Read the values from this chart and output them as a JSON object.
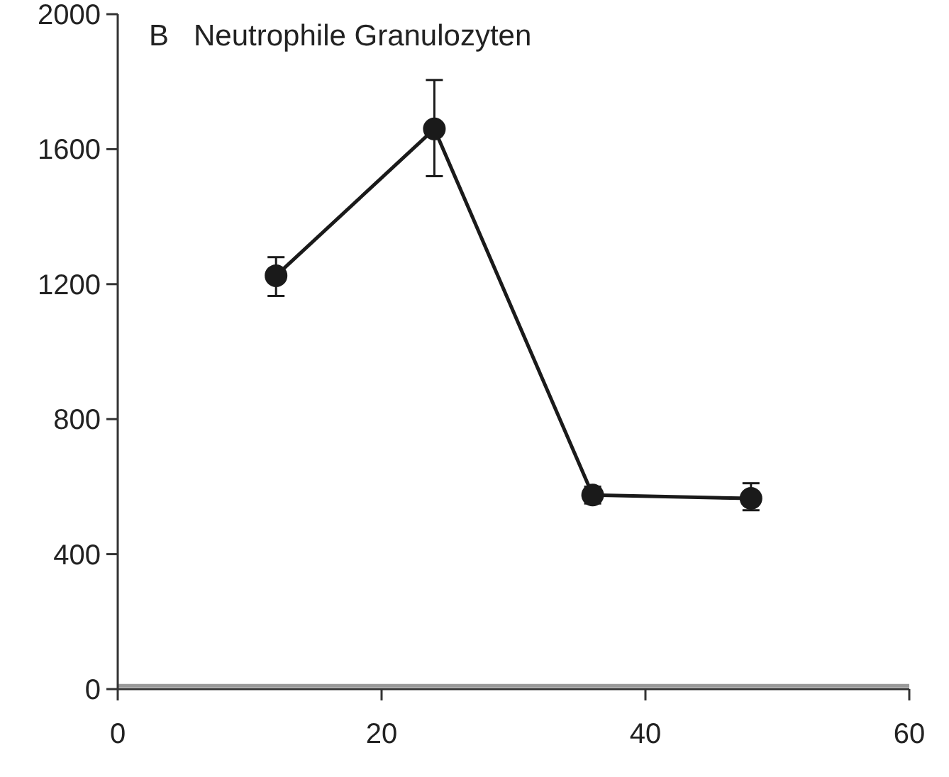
{
  "chart_data": {
    "type": "line",
    "title": "B   Neutrophile Granulozyten",
    "x": [
      12,
      24,
      36,
      48
    ],
    "series": [
      {
        "color": "#1a1a1a",
        "values": [
          1225,
          1660,
          575,
          565
        ],
        "errors": [
          [
            1165,
            1280
          ],
          [
            1520,
            1805
          ],
          [
            550,
            600
          ],
          [
            530,
            610
          ]
        ]
      }
    ],
    "xlim": [
      0,
      60
    ],
    "xticks": [
      0,
      20,
      40,
      60
    ],
    "ylim": [
      0,
      2000
    ],
    "yticks": [
      0,
      400,
      800,
      1200,
      1600,
      2000
    ],
    "ref_lines": [
      {
        "axis": "y",
        "value": 10,
        "color": "#999999"
      }
    ],
    "marker": "circle",
    "line_style": "solid"
  }
}
